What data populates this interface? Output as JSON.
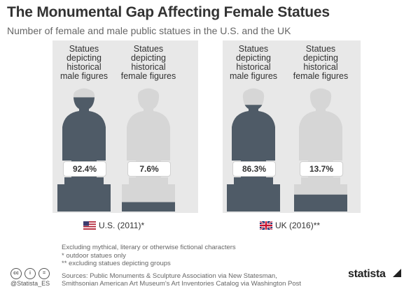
{
  "header": {
    "title": "The Monumental Gap Affecting Female Statues",
    "subtitle": "Number of female and male public statues in the U.S. and the UK"
  },
  "colors": {
    "male": "#4f5b67",
    "female": "#d6d6d6",
    "panel": "#e8e8e8"
  },
  "chart_data": {
    "type": "bar",
    "categories": [
      "U.S. (2011)*",
      "UK (2016)**"
    ],
    "series": [
      {
        "name": "Statues depicting historical male figures",
        "values": [
          92.4,
          86.3
        ]
      },
      {
        "name": "Statues depicting historical female figures",
        "values": [
          7.6,
          13.7
        ]
      }
    ],
    "unit": "%",
    "ylim": [
      0,
      100
    ],
    "countries": [
      {
        "label": "U.S. (2011)*",
        "flag": "us-flag",
        "columns": [
          {
            "label_lines": [
              "Statues",
              "depicting",
              "historical",
              "male figures"
            ],
            "value": 92.4,
            "value_label": "92.4%"
          },
          {
            "label_lines": [
              "Statues",
              "depicting",
              "historical",
              "female figures"
            ],
            "value": 7.6,
            "value_label": "7.6%"
          }
        ]
      },
      {
        "label": "UK (2016)**",
        "flag": "uk-flag",
        "columns": [
          {
            "label_lines": [
              "Statues",
              "depicting",
              "historical",
              "male figures"
            ],
            "value": 86.3,
            "value_label": "86.3%"
          },
          {
            "label_lines": [
              "Statues",
              "depicting",
              "historical",
              "female figures"
            ],
            "value": 13.7,
            "value_label": "13.7%"
          }
        ]
      }
    ]
  },
  "footer": {
    "notes": [
      "Excluding mythical, literary or otherwise fictional characters",
      "* outdoor statues only",
      "** excluding statues depicting groups",
      "",
      "Sources: Public Monuments & Sculpture Association via New Statesman,",
      "Smithsonian American Art Museum's Art Inventories Catalog via Washington Post"
    ],
    "license_icons": [
      "cc-icon",
      "attribution-icon",
      "equal-icon"
    ],
    "handle": "@Statista_ES",
    "logo": "statista"
  }
}
